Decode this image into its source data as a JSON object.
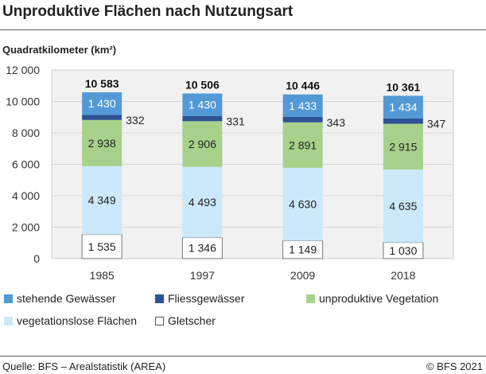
{
  "chart_data": {
    "type": "bar",
    "stacked": true,
    "title": "Unproduktive Flächen nach Nutzungsart",
    "ylabel": "Quadratkilometer (km²)",
    "ylim": [
      0,
      12000
    ],
    "yticks": [
      "0",
      "2 000",
      "4 000",
      "6 000",
      "8 000",
      "10 000",
      "12 000"
    ],
    "categories": [
      "1985",
      "1997",
      "2009",
      "2018"
    ],
    "totals": [
      "10 583",
      "10 506",
      "10 446",
      "10 361"
    ],
    "grid": true,
    "legend_position": "bottom",
    "series": [
      {
        "name": "Gletscher",
        "color": "#ffffff",
        "values": [
          1535,
          1346,
          1149,
          1030
        ],
        "labels": [
          "1 535",
          "1 346",
          "1 149",
          "1 030"
        ]
      },
      {
        "name": "vegetationslose Flächen",
        "color": "#cbe9fb",
        "values": [
          4349,
          4493,
          4630,
          4635
        ],
        "labels": [
          "4 349",
          "4 493",
          "4 630",
          "4 635"
        ]
      },
      {
        "name": "unproduktive Vegetation",
        "color": "#a7d18b",
        "values": [
          2938,
          2906,
          2891,
          2915
        ],
        "labels": [
          "2 938",
          "2 906",
          "2 891",
          "2 915"
        ]
      },
      {
        "name": "Fliessgewässer",
        "color": "#2d5394",
        "values": [
          332,
          331,
          343,
          347
        ],
        "labels": [
          "332",
          "331",
          "343",
          "347"
        ]
      },
      {
        "name": "stehende Gewässer",
        "color": "#5299d6",
        "values": [
          1430,
          1430,
          1433,
          1434
        ],
        "labels": [
          "1 430",
          "1 430",
          "1 433",
          "1 434"
        ]
      }
    ],
    "legend_order": [
      4,
      3,
      2,
      1,
      0
    ]
  },
  "footer": {
    "source": "Quelle: BFS – Arealstatistik (AREA)",
    "copyright": "© BFS 2021"
  }
}
